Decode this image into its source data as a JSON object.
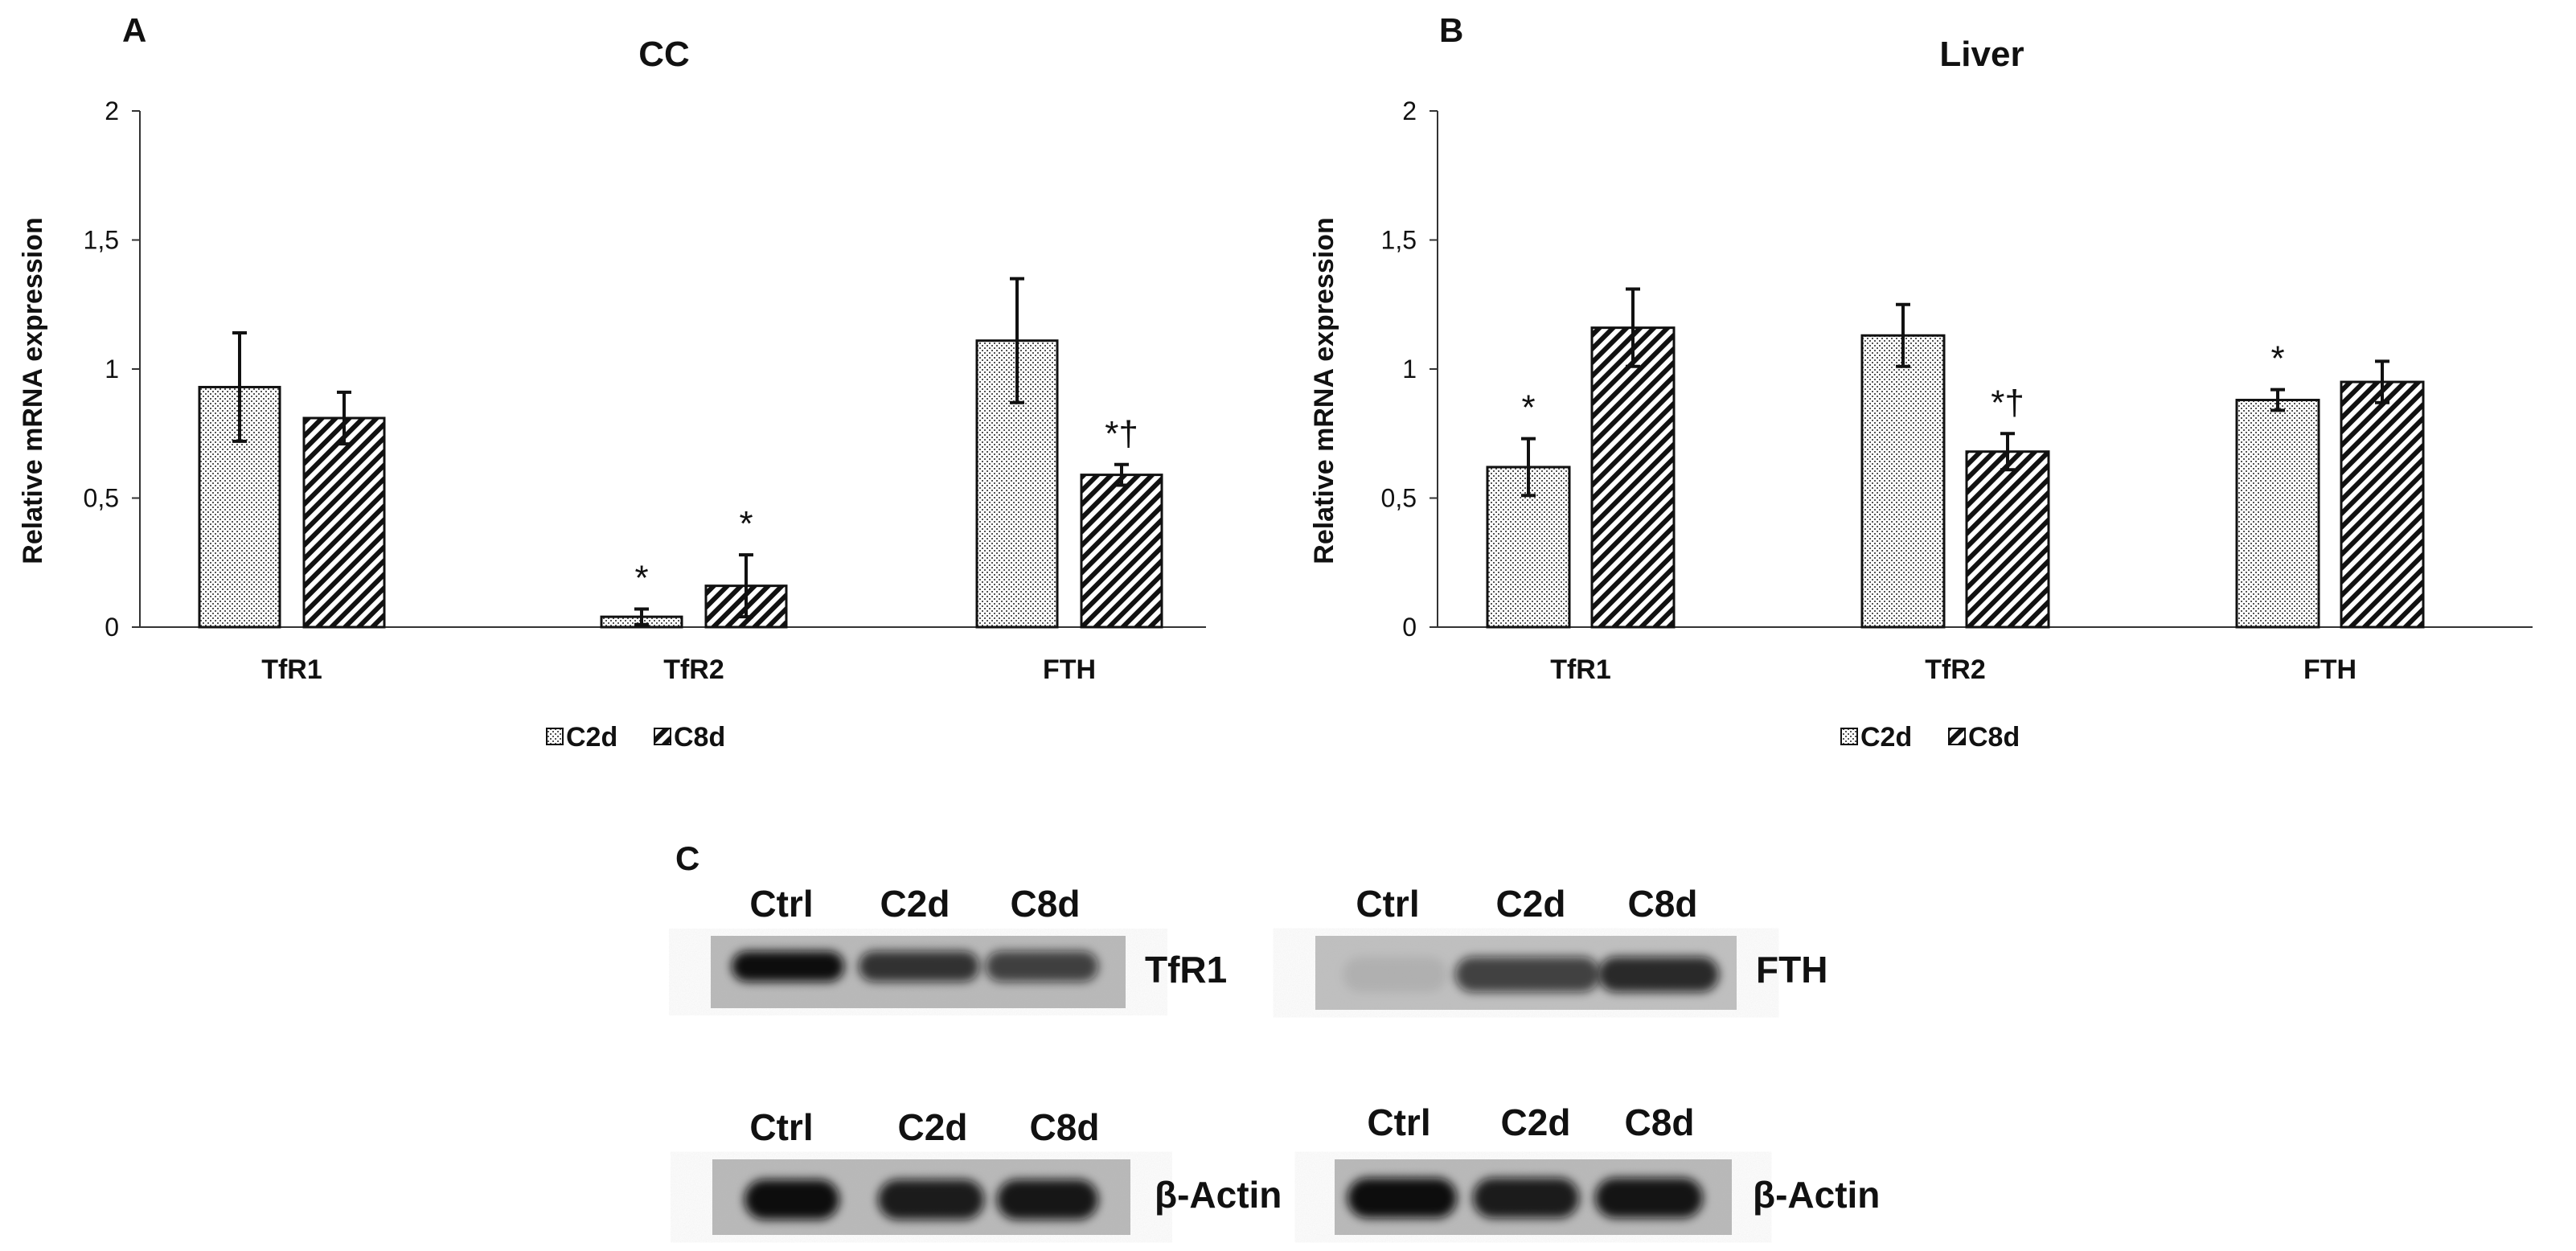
{
  "panels": {
    "a": "A",
    "b": "B",
    "c": "C"
  },
  "legend": {
    "c2d": "C2d",
    "c8d": "C8d"
  },
  "chart_data": [
    {
      "type": "bar",
      "title": "CC",
      "ylabel": "Relative mRNA expression",
      "xlabel": "",
      "ylim": [
        0,
        2
      ],
      "yticks": [
        "0",
        "0,5",
        "1",
        "1,5",
        "2"
      ],
      "categories": [
        "TfR1",
        "TfR2",
        "FTH"
      ],
      "series": [
        {
          "name": "C2d",
          "pattern": "dots",
          "values": [
            0.93,
            0.04,
            1.11
          ],
          "errors": [
            0.21,
            0.03,
            0.24
          ],
          "annotations": [
            "",
            "*",
            ""
          ]
        },
        {
          "name": "C8d",
          "pattern": "hatch",
          "values": [
            0.81,
            0.16,
            0.59
          ],
          "errors": [
            0.1,
            0.12,
            0.04
          ],
          "annotations": [
            "",
            "*",
            "*†"
          ]
        }
      ],
      "grid": false,
      "legend_position": "bottom"
    },
    {
      "type": "bar",
      "title": "Liver",
      "ylabel": "Relative mRNA expression",
      "xlabel": "",
      "ylim": [
        0,
        2
      ],
      "yticks": [
        "0",
        "0,5",
        "1",
        "1,5",
        "2"
      ],
      "categories": [
        "TfR1",
        "TfR2",
        "FTH"
      ],
      "series": [
        {
          "name": "C2d",
          "pattern": "dots",
          "values": [
            0.62,
            1.13,
            0.88
          ],
          "errors": [
            0.11,
            0.12,
            0.04
          ],
          "annotations": [
            "*",
            "",
            "*"
          ]
        },
        {
          "name": "C8d",
          "pattern": "hatch",
          "values": [
            1.16,
            0.68,
            0.95
          ],
          "errors": [
            0.15,
            0.07,
            0.08
          ],
          "annotations": [
            "",
            "*†",
            ""
          ]
        }
      ],
      "grid": false,
      "legend_position": "bottom"
    }
  ],
  "western_blot": {
    "lanes": [
      "Ctrl",
      "C2d",
      "C8d"
    ],
    "blots": [
      {
        "protein": "TfR1",
        "intensity": [
          1.0,
          0.8,
          0.72
        ]
      },
      {
        "protein": "FTH",
        "intensity": [
          0.08,
          0.72,
          0.85
        ]
      },
      {
        "protein": "β-Actin",
        "intensity": [
          1.0,
          0.92,
          0.95
        ]
      },
      {
        "protein": "β-Actin",
        "intensity": [
          1.0,
          0.92,
          0.96
        ]
      }
    ]
  }
}
